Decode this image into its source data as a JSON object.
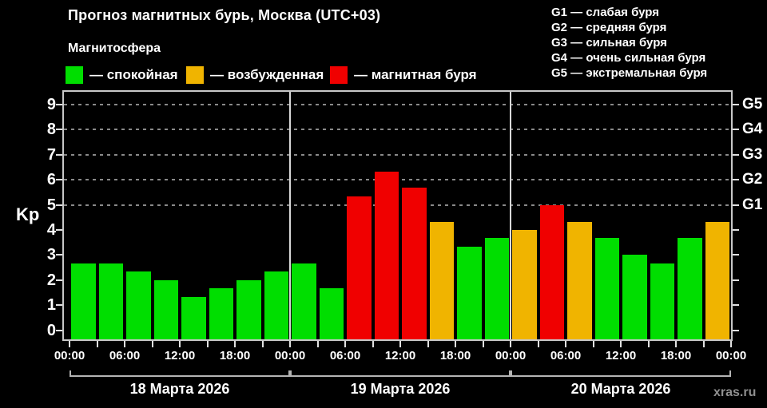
{
  "header": {
    "title": "Прогноз магнитных бурь, Москва (UTC+03)",
    "subtitle": "Магнитосфера",
    "legend": [
      {
        "key": "quiet",
        "label": "— спокойная",
        "color": "#00DE00"
      },
      {
        "key": "excited",
        "label": "— возбужденная",
        "color": "#F0B400"
      },
      {
        "key": "storm",
        "label": "— магнитная буря",
        "color": "#F00000"
      }
    ],
    "g_scale_legend": [
      "G1 — слабая буря",
      "G2 — средняя буря",
      "G3 — сильная буря",
      "G4 — очень сильная буря",
      "G5 — экстремальная буря"
    ]
  },
  "chart_data": {
    "type": "bar",
    "title": "Прогноз магнитных бурь, Москва (UTC+03)",
    "ylabel": "Kp",
    "ylim": [
      -0.4,
      9.5
    ],
    "y_ticks": [
      0,
      1,
      2,
      3,
      4,
      5,
      6,
      7,
      8,
      9
    ],
    "gridlines_at_kp": [
      5,
      6,
      7,
      8,
      9
    ],
    "right_axis": [
      {
        "kp": 5,
        "label": "G1"
      },
      {
        "kp": 6,
        "label": "G2"
      },
      {
        "kp": 7,
        "label": "G3"
      },
      {
        "kp": 8,
        "label": "G4"
      },
      {
        "kp": 9,
        "label": "G5"
      }
    ],
    "bar_interval_hours": 3,
    "x_tick_labels": [
      "00:00",
      "06:00",
      "12:00",
      "18:00",
      "00:00",
      "06:00",
      "12:00",
      "18:00",
      "00:00",
      "06:00",
      "12:00",
      "18:00",
      "00:00"
    ],
    "days": [
      {
        "date": "18 Марта 2026",
        "values": [
          2.67,
          2.67,
          2.33,
          2.0,
          1.33,
          1.67,
          2.0,
          2.33
        ]
      },
      {
        "date": "19 Марта 2026",
        "values": [
          2.67,
          1.67,
          5.33,
          6.33,
          5.67,
          4.33,
          3.33,
          3.67
        ]
      },
      {
        "date": "20 Марта 2026",
        "values": [
          4.0,
          5.0,
          4.33,
          3.67,
          3.0,
          2.67,
          3.67,
          4.33
        ]
      }
    ],
    "colors": {
      "quiet": "#00DE00",
      "excited": "#F0B400",
      "storm": "#F00000"
    },
    "thresholds": {
      "excited_min_kp": 4,
      "storm_min_kp": 5
    }
  },
  "watermark": "xras.ru"
}
